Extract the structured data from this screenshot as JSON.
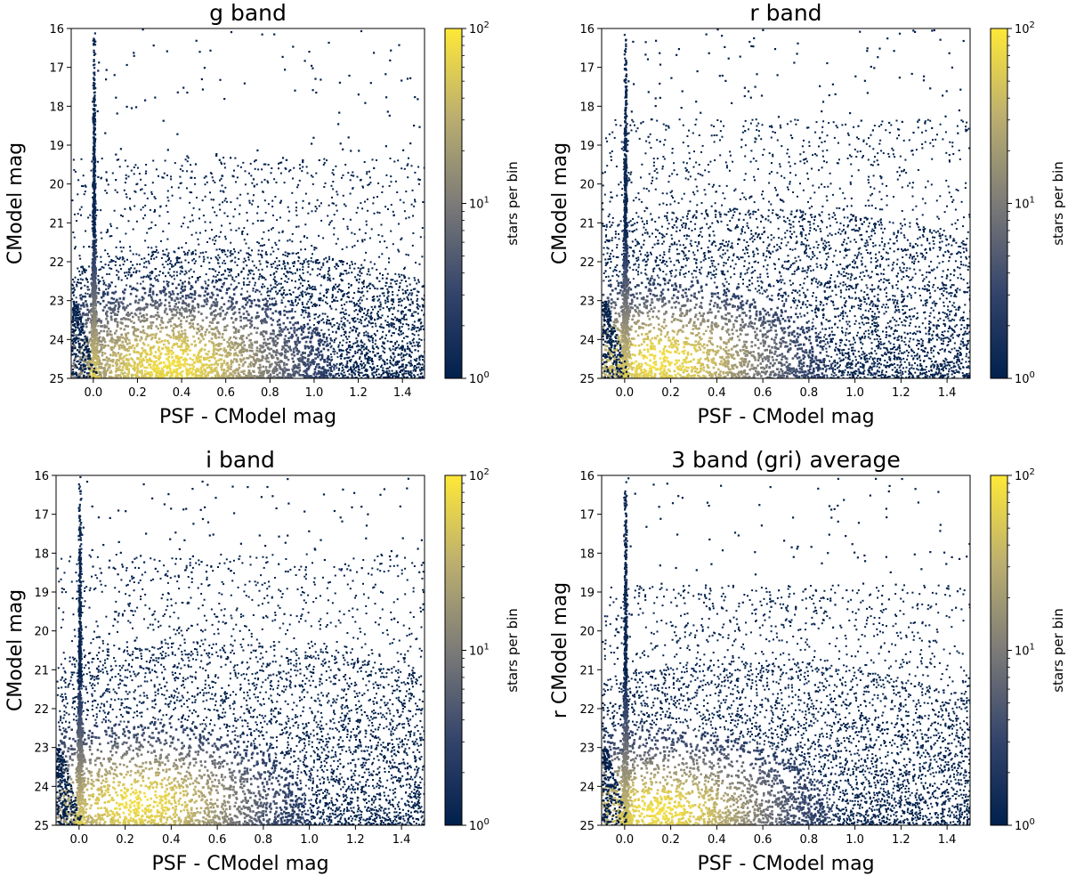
{
  "chart_data": [
    {
      "type": "heatmap",
      "title": "g band",
      "xlabel": "PSF - CModel mag",
      "ylabel": "CModel mag",
      "xlim": [
        -0.1,
        1.5
      ],
      "ylim": [
        25,
        16
      ],
      "xticks": [
        "0.0",
        "0.2",
        "0.4",
        "0.6",
        "0.8",
        "1.0",
        "1.2",
        "1.4"
      ],
      "yticks": [
        "16",
        "17",
        "18",
        "19",
        "20",
        "21",
        "22",
        "23",
        "24",
        "25"
      ],
      "colorbar": {
        "label": "stars per bin",
        "scale": "log",
        "range": [
          1,
          100
        ],
        "tick_labels": [
          "10",
          "10",
          "10"
        ],
        "tick_exponents": [
          "0",
          "1",
          "2"
        ]
      },
      "colormap": [
        "#00204c",
        "#575c6d",
        "#a59c74",
        "#fee838"
      ],
      "density": {
        "stellar_locus_x": 0.0,
        "peak": [
          0.35,
          24.6
        ],
        "cloud_top_mag": 21.8,
        "sparse_top_mag": 19.3
      }
    },
    {
      "type": "heatmap",
      "title": "r band",
      "xlabel": "PSF - CModel mag",
      "ylabel": "CModel mag",
      "xlim": [
        -0.1,
        1.5
      ],
      "ylim": [
        25,
        16
      ],
      "xticks": [
        "0.0",
        "0.2",
        "0.4",
        "0.6",
        "0.8",
        "1.0",
        "1.2",
        "1.4"
      ],
      "yticks": [
        "16",
        "17",
        "18",
        "19",
        "20",
        "21",
        "22",
        "23",
        "24",
        "25"
      ],
      "colorbar": {
        "label": "stars per bin",
        "scale": "log",
        "range": [
          1,
          100
        ],
        "tick_labels": [
          "10",
          "10",
          "10"
        ],
        "tick_exponents": [
          "0",
          "1",
          "2"
        ]
      },
      "colormap": [
        "#00204c",
        "#575c6d",
        "#a59c74",
        "#fee838"
      ],
      "density": {
        "stellar_locus_x": 0.0,
        "peak": [
          0.15,
          24.5
        ],
        "cloud_top_mag": 20.8,
        "sparse_top_mag": 18.3
      }
    },
    {
      "type": "heatmap",
      "title": "i band",
      "xlabel": "PSF - CModel mag",
      "ylabel": "CModel mag",
      "xlim": [
        -0.1,
        1.5
      ],
      "ylim": [
        25,
        16
      ],
      "xticks": [
        "0.0",
        "0.2",
        "0.4",
        "0.6",
        "0.8",
        "1.0",
        "1.2",
        "1.4"
      ],
      "yticks": [
        "16",
        "17",
        "18",
        "19",
        "20",
        "21",
        "22",
        "23",
        "24",
        "25"
      ],
      "colorbar": {
        "label": "stars per bin",
        "scale": "log",
        "range": [
          1,
          100
        ],
        "tick_labels": [
          "10",
          "10",
          "10"
        ],
        "tick_exponents": [
          "0",
          "1",
          "2"
        ]
      },
      "colormap": [
        "#00204c",
        "#575c6d",
        "#a59c74",
        "#fee838"
      ],
      "density": {
        "stellar_locus_x": 0.0,
        "peak": [
          0.25,
          24.4
        ],
        "cloud_top_mag": 20.5,
        "sparse_top_mag": 18.0
      }
    },
    {
      "type": "heatmap",
      "title": "3 band (gri) average",
      "xlabel": "PSF - CModel mag",
      "ylabel": "r CModel mag",
      "xlim": [
        -0.1,
        1.5
      ],
      "ylim": [
        25,
        16
      ],
      "xticks": [
        "0.0",
        "0.2",
        "0.4",
        "0.6",
        "0.8",
        "1.0",
        "1.2",
        "1.4"
      ],
      "yticks": [
        "16",
        "17",
        "18",
        "19",
        "20",
        "21",
        "22",
        "23",
        "24",
        "25"
      ],
      "colorbar": {
        "label": "stars per bin",
        "scale": "log",
        "range": [
          1,
          100
        ],
        "tick_labels": [
          "10",
          "10",
          "10"
        ],
        "tick_exponents": [
          "0",
          "1",
          "2"
        ]
      },
      "colormap": [
        "#00204c",
        "#575c6d",
        "#a59c74",
        "#fee838"
      ],
      "density": {
        "stellar_locus_x": 0.0,
        "peak": [
          0.15,
          24.6
        ],
        "cloud_top_mag": 21.0,
        "sparse_top_mag": 18.8
      }
    }
  ]
}
